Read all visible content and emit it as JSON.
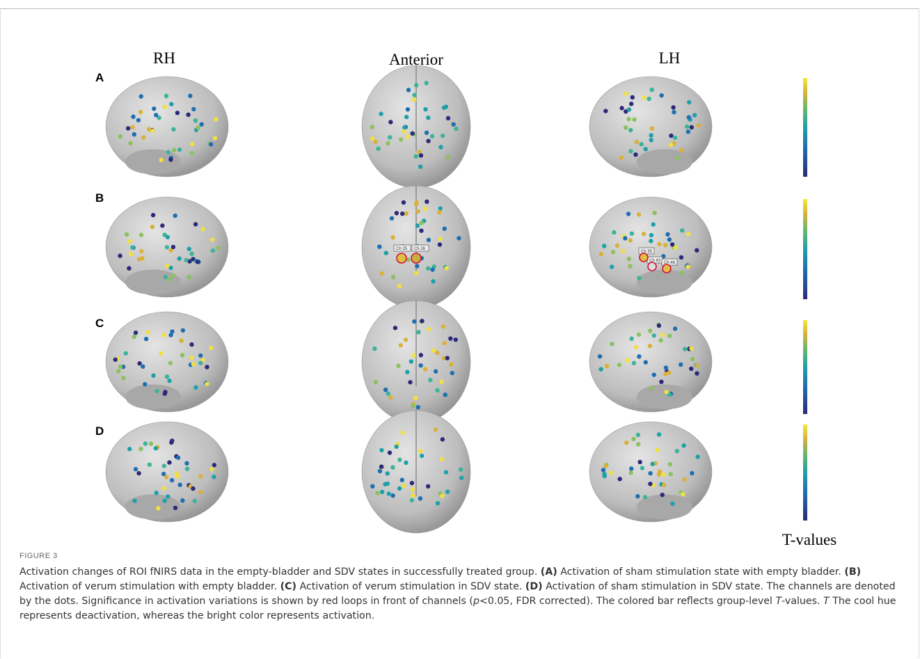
{
  "figure": {
    "columns": [
      "RH",
      "Anterior",
      "LH"
    ],
    "rows": [
      "A",
      "B",
      "C",
      "D"
    ],
    "colorbar_label": "T-values",
    "channel_labels": [
      "Ch 25",
      "Ch 26",
      "Ch 35",
      "Ch 43",
      "Ch 46"
    ],
    "label": "FIGURE 3",
    "caption": [
      "Activation changes of ROI fNIRS data in the empty-bladder and SDV states in successfully treated group. ",
      "(A)",
      " Activation of sham stimulation state with empty bladder. ",
      "(B)",
      " Activation of verum stimulation with empty bladder. ",
      "(C)",
      " Activation of verum stimulation in SDV state. ",
      "(D)",
      " Activation of sham stimulation in SDV state. The channels are denoted by the dots. Significance in activation variations is shown by red loops in front of channels (",
      "p",
      "<0.05, FDR corrected). The colored bar reflects group-level ",
      "T",
      "-values. ",
      "T",
      " The cool hue represents deactivation, whereas the bright color represents activation."
    ]
  }
}
